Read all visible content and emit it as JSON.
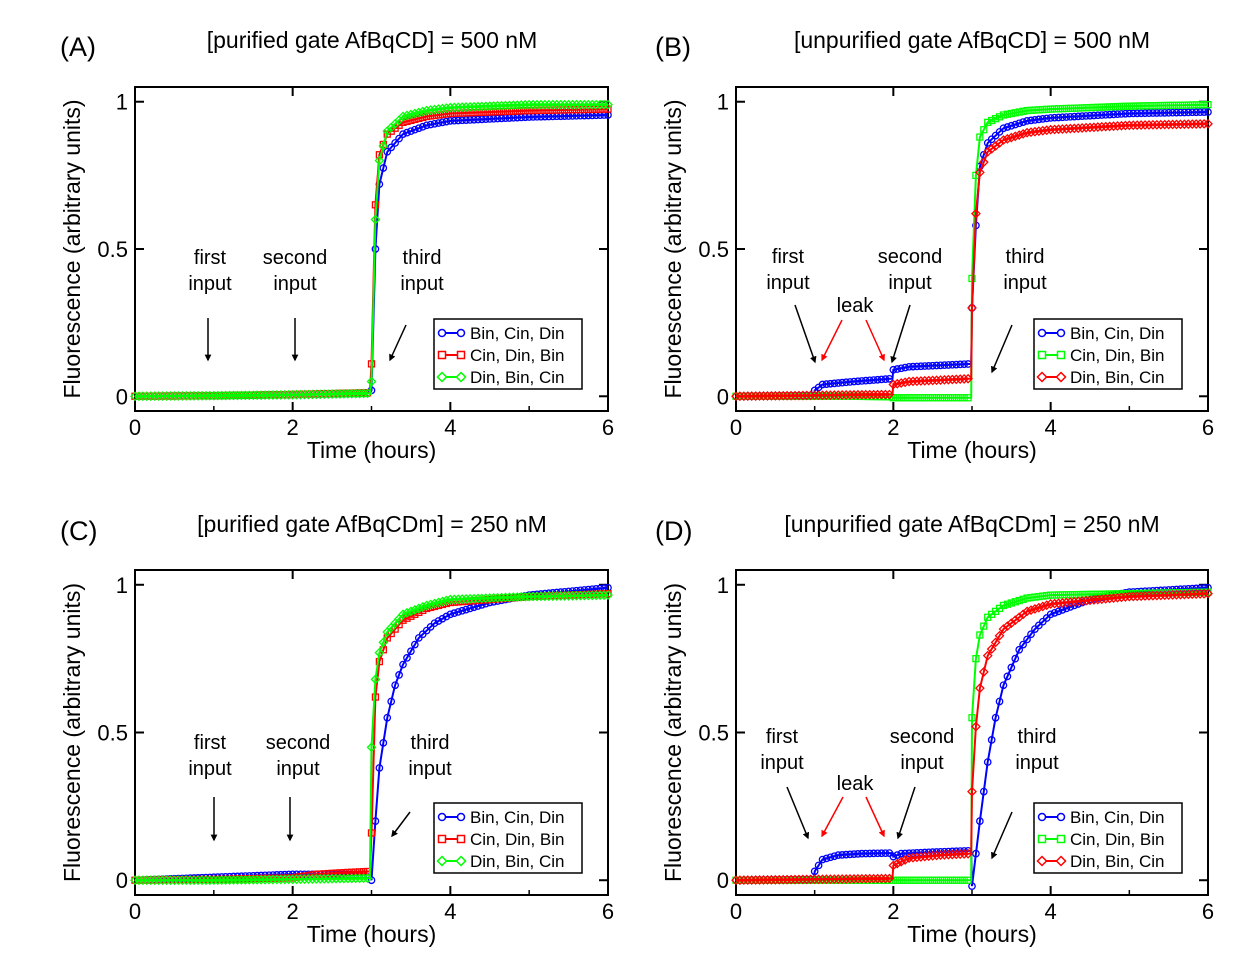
{
  "panels": [
    {
      "letter": "(A)",
      "title": "[purified gate AfBqCD] = 500 nM",
      "annotations": {
        "first": [
          "first",
          "input"
        ],
        "second": [
          "second",
          "input"
        ],
        "third": [
          "third",
          "input"
        ],
        "leak": ""
      }
    },
    {
      "letter": "(B)",
      "title": "[unpurified gate AfBqCD] = 500 nM",
      "annotations": {
        "first": [
          "first",
          "input"
        ],
        "second": [
          "second",
          "input"
        ],
        "third": [
          "third",
          "input"
        ],
        "leak": "leak"
      }
    },
    {
      "letter": "(C)",
      "title": "[purified gate AfBqCDm] = 250 nM",
      "annotations": {
        "first": [
          "first",
          "input"
        ],
        "second": [
          "second",
          "input"
        ],
        "third": [
          "third",
          "input"
        ],
        "leak": ""
      }
    },
    {
      "letter": "(D)",
      "title": "[unpurified gate AfBqCDm] = 250 nM",
      "annotations": {
        "first": [
          "first",
          "input"
        ],
        "second": [
          "second",
          "input"
        ],
        "third": [
          "third",
          "input"
        ],
        "leak": "leak"
      }
    }
  ],
  "colors": {
    "blue": "#0000ff",
    "red": "#ff0000",
    "green": "#00ff00",
    "leak": "#ff0000",
    "axis": "#000000"
  },
  "chart_data": [
    {
      "type": "line",
      "title": "[purified gate AfBqCD] = 500 nM",
      "xlabel": "Time (hours)",
      "ylabel": "Fluorescence (arbitrary units)",
      "xlim": [
        0,
        6
      ],
      "ylim": [
        -0.05,
        1.05
      ],
      "xticks": [
        0,
        2,
        4,
        6
      ],
      "yticks": [
        0,
        0.5,
        1
      ],
      "legend_position": "lower-right",
      "series": [
        {
          "name": "Bin, Cin, Din",
          "color": "#0000ff",
          "marker": "circle",
          "points": [
            [
              0,
              0.0
            ],
            [
              1,
              0.002
            ],
            [
              2,
              0.005
            ],
            [
              2.98,
              0.01
            ],
            [
              3.0,
              0.02
            ],
            [
              3.05,
              0.5
            ],
            [
              3.1,
              0.72
            ],
            [
              3.2,
              0.83
            ],
            [
              3.4,
              0.89
            ],
            [
              3.7,
              0.92
            ],
            [
              4,
              0.935
            ],
            [
              5,
              0.948
            ],
            [
              6,
              0.955
            ]
          ]
        },
        {
          "name": "Cin, Din, Bin",
          "color": "#ff0000",
          "marker": "square",
          "points": [
            [
              0,
              0.0
            ],
            [
              1,
              0.002
            ],
            [
              2,
              0.006
            ],
            [
              2.98,
              0.012
            ],
            [
              3.0,
              0.11
            ],
            [
              3.05,
              0.65
            ],
            [
              3.1,
              0.82
            ],
            [
              3.2,
              0.89
            ],
            [
              3.4,
              0.93
            ],
            [
              3.7,
              0.95
            ],
            [
              4,
              0.96
            ],
            [
              5,
              0.97
            ],
            [
              6,
              0.975
            ]
          ]
        },
        {
          "name": "Din, Bin, Cin",
          "color": "#00ff00",
          "marker": "diamond",
          "points": [
            [
              0,
              0.0
            ],
            [
              1,
              0.002
            ],
            [
              2,
              0.005
            ],
            [
              2.98,
              0.01
            ],
            [
              3.0,
              0.05
            ],
            [
              3.05,
              0.6
            ],
            [
              3.1,
              0.8
            ],
            [
              3.2,
              0.9
            ],
            [
              3.4,
              0.95
            ],
            [
              3.7,
              0.97
            ],
            [
              4,
              0.98
            ],
            [
              5,
              0.99
            ],
            [
              6,
              0.99
            ]
          ]
        }
      ]
    },
    {
      "type": "line",
      "title": "[unpurified gate AfBqCD] = 500 nM",
      "xlabel": "Time (hours)",
      "ylabel": "Fluorescence (arbitrary units)",
      "xlim": [
        0,
        6
      ],
      "ylim": [
        -0.05,
        1.05
      ],
      "xticks": [
        0,
        2,
        4,
        6
      ],
      "yticks": [
        0,
        0.5,
        1
      ],
      "legend_position": "lower-right",
      "series": [
        {
          "name": "Bin, Cin, Din",
          "color": "#0000ff",
          "marker": "circle",
          "points": [
            [
              0,
              0.0
            ],
            [
              0.99,
              0.003
            ],
            [
              1.0,
              0.02
            ],
            [
              1.1,
              0.04
            ],
            [
              1.5,
              0.05
            ],
            [
              1.99,
              0.06
            ],
            [
              2.0,
              0.09
            ],
            [
              2.2,
              0.1
            ],
            [
              2.6,
              0.105
            ],
            [
              2.99,
              0.11
            ],
            [
              3.0,
              0.3
            ],
            [
              3.05,
              0.58
            ],
            [
              3.1,
              0.78
            ],
            [
              3.2,
              0.86
            ],
            [
              3.4,
              0.91
            ],
            [
              3.7,
              0.935
            ],
            [
              4,
              0.945
            ],
            [
              5,
              0.96
            ],
            [
              6,
              0.965
            ]
          ]
        },
        {
          "name": "Cin, Din, Bin",
          "color": "#00ff00",
          "marker": "square",
          "points": [
            [
              0,
              0.0
            ],
            [
              1,
              0.0
            ],
            [
              1.5,
              0.0
            ],
            [
              1.99,
              -0.002
            ],
            [
              2.0,
              -0.005
            ],
            [
              2.5,
              -0.005
            ],
            [
              2.99,
              -0.005
            ],
            [
              3.0,
              0.4
            ],
            [
              3.05,
              0.75
            ],
            [
              3.1,
              0.88
            ],
            [
              3.2,
              0.93
            ],
            [
              3.4,
              0.955
            ],
            [
              3.7,
              0.97
            ],
            [
              4,
              0.975
            ],
            [
              5,
              0.985
            ],
            [
              6,
              0.99
            ]
          ]
        },
        {
          "name": "Din, Bin, Cin",
          "color": "#ff0000",
          "marker": "diamond",
          "points": [
            [
              0,
              0.0
            ],
            [
              1,
              0.003
            ],
            [
              1.5,
              0.005
            ],
            [
              1.99,
              0.006
            ],
            [
              2.0,
              0.04
            ],
            [
              2.2,
              0.05
            ],
            [
              2.6,
              0.055
            ],
            [
              2.99,
              0.06
            ],
            [
              3.0,
              0.3
            ],
            [
              3.05,
              0.62
            ],
            [
              3.1,
              0.76
            ],
            [
              3.2,
              0.83
            ],
            [
              3.4,
              0.87
            ],
            [
              3.7,
              0.895
            ],
            [
              4,
              0.905
            ],
            [
              5,
              0.92
            ],
            [
              6,
              0.925
            ]
          ]
        }
      ]
    },
    {
      "type": "line",
      "title": "[purified gate AfBqCDm] = 250 nM",
      "xlabel": "Time (hours)",
      "ylabel": "Fluorescence (arbitrary units)",
      "xlim": [
        0,
        6
      ],
      "ylim": [
        -0.05,
        1.05
      ],
      "xticks": [
        0,
        2,
        4,
        6
      ],
      "yticks": [
        0,
        0.5,
        1
      ],
      "legend_position": "lower-right",
      "series": [
        {
          "name": "Bin, Cin, Din",
          "color": "#0000ff",
          "marker": "circle",
          "points": [
            [
              0,
              0.0
            ],
            [
              1,
              0.01
            ],
            [
              1.5,
              0.015
            ],
            [
              2,
              0.02
            ],
            [
              2.5,
              0.02
            ],
            [
              2.98,
              0.02
            ],
            [
              3.0,
              0.0
            ],
            [
              3.05,
              0.2
            ],
            [
              3.1,
              0.38
            ],
            [
              3.2,
              0.55
            ],
            [
              3.3,
              0.66
            ],
            [
              3.4,
              0.73
            ],
            [
              3.6,
              0.82
            ],
            [
              3.8,
              0.87
            ],
            [
              4,
              0.9
            ],
            [
              4.5,
              0.94
            ],
            [
              5,
              0.965
            ],
            [
              6,
              0.99
            ]
          ]
        },
        {
          "name": "Cin, Din, Bin",
          "color": "#ff0000",
          "marker": "square",
          "points": [
            [
              0,
              0.0
            ],
            [
              1,
              0.003
            ],
            [
              2,
              0.008
            ],
            [
              2.3,
              0.02
            ],
            [
              2.6,
              0.025
            ],
            [
              2.98,
              0.03
            ],
            [
              3.0,
              0.16
            ],
            [
              3.05,
              0.62
            ],
            [
              3.1,
              0.74
            ],
            [
              3.2,
              0.82
            ],
            [
              3.4,
              0.88
            ],
            [
              3.7,
              0.92
            ],
            [
              4,
              0.94
            ],
            [
              5,
              0.96
            ],
            [
              6,
              0.97
            ]
          ]
        },
        {
          "name": "Din, Bin, Cin",
          "color": "#00ff00",
          "marker": "diamond",
          "points": [
            [
              0,
              0.0
            ],
            [
              1,
              0.0
            ],
            [
              2,
              0.003
            ],
            [
              2.5,
              0.005
            ],
            [
              2.98,
              0.007
            ],
            [
              3.0,
              0.45
            ],
            [
              3.05,
              0.68
            ],
            [
              3.1,
              0.77
            ],
            [
              3.2,
              0.84
            ],
            [
              3.4,
              0.9
            ],
            [
              3.7,
              0.93
            ],
            [
              4,
              0.95
            ],
            [
              5,
              0.96
            ],
            [
              6,
              0.965
            ]
          ]
        }
      ]
    },
    {
      "type": "line",
      "title": "[unpurified gate AfBqCDm] = 250 nM",
      "xlabel": "Time (hours)",
      "ylabel": "Fluorescence (arbitrary units)",
      "xlim": [
        0,
        6
      ],
      "ylim": [
        -0.05,
        1.05
      ],
      "xticks": [
        0,
        2,
        4,
        6
      ],
      "yticks": [
        0,
        0.5,
        1
      ],
      "legend_position": "lower-right",
      "series": [
        {
          "name": "Bin, Cin, Din",
          "color": "#0000ff",
          "marker": "circle",
          "points": [
            [
              0,
              0.0
            ],
            [
              0.99,
              0.003
            ],
            [
              1.0,
              0.03
            ],
            [
              1.1,
              0.07
            ],
            [
              1.3,
              0.085
            ],
            [
              1.6,
              0.09
            ],
            [
              1.99,
              0.092
            ],
            [
              2.0,
              0.08
            ],
            [
              2.1,
              0.09
            ],
            [
              2.5,
              0.095
            ],
            [
              2.99,
              0.1
            ],
            [
              3.0,
              -0.02
            ],
            [
              3.1,
              0.2
            ],
            [
              3.2,
              0.4
            ],
            [
              3.3,
              0.55
            ],
            [
              3.4,
              0.66
            ],
            [
              3.6,
              0.78
            ],
            [
              3.8,
              0.85
            ],
            [
              4,
              0.9
            ],
            [
              4.5,
              0.95
            ],
            [
              5,
              0.975
            ],
            [
              6,
              0.99
            ]
          ]
        },
        {
          "name": "Cin, Din, Bin",
          "color": "#00ff00",
          "marker": "square",
          "points": [
            [
              0,
              0.0
            ],
            [
              1,
              0.0
            ],
            [
              2,
              0.0
            ],
            [
              2.5,
              0.0
            ],
            [
              2.99,
              0.0
            ],
            [
              3.0,
              0.55
            ],
            [
              3.05,
              0.75
            ],
            [
              3.1,
              0.83
            ],
            [
              3.2,
              0.89
            ],
            [
              3.4,
              0.93
            ],
            [
              3.7,
              0.955
            ],
            [
              4,
              0.965
            ],
            [
              5,
              0.97
            ],
            [
              6,
              0.975
            ]
          ]
        },
        {
          "name": "Din, Bin, Cin",
          "color": "#ff0000",
          "marker": "diamond",
          "points": [
            [
              0,
              0.0
            ],
            [
              1,
              0.003
            ],
            [
              1.99,
              0.006
            ],
            [
              2.0,
              0.05
            ],
            [
              2.2,
              0.075
            ],
            [
              2.6,
              0.085
            ],
            [
              2.99,
              0.09
            ],
            [
              3.0,
              0.3
            ],
            [
              3.05,
              0.52
            ],
            [
              3.1,
              0.65
            ],
            [
              3.2,
              0.76
            ],
            [
              3.4,
              0.85
            ],
            [
              3.7,
              0.91
            ],
            [
              4,
              0.935
            ],
            [
              5,
              0.96
            ],
            [
              6,
              0.97
            ]
          ]
        }
      ]
    }
  ]
}
